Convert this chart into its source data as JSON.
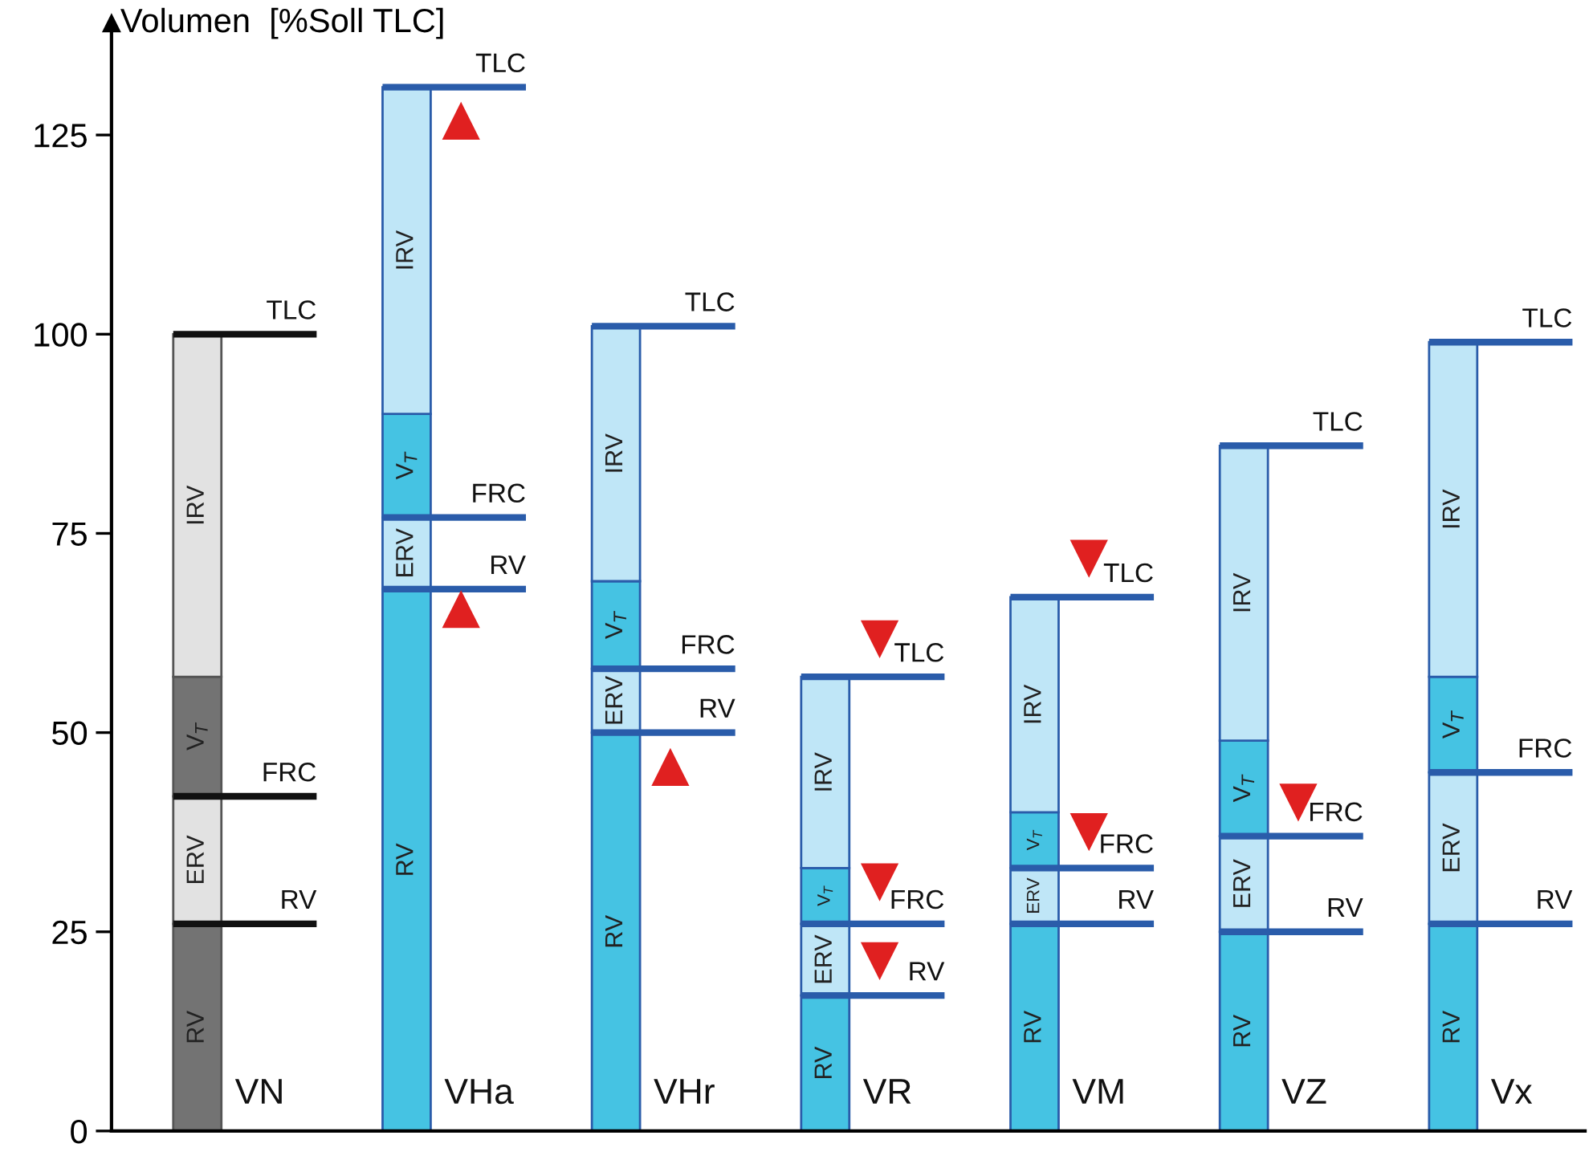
{
  "chart_data": {
    "type": "bar",
    "stacked": true,
    "ylabel": "Volumen  [%Soll TLC]",
    "categories": [
      "VN",
      "VHa",
      "VHr",
      "VR",
      "VM",
      "VZ",
      "Vx"
    ],
    "ylim": [
      0,
      139
    ],
    "yticks": [
      0,
      25,
      50,
      75,
      100,
      125
    ],
    "grid": false,
    "legend": false,
    "series": [
      {
        "name": "RV",
        "values": [
          26,
          68,
          50,
          17,
          26,
          25,
          26
        ],
        "value_labels": [
          "RV",
          "RV",
          "RV",
          "RV",
          "RV",
          "RV",
          "RV"
        ],
        "colors": [
          "#737373",
          "#45c3e3",
          "#45c3e3",
          "#45c3e3",
          "#45c3e3",
          "#45c3e3",
          "#45c3e3"
        ]
      },
      {
        "name": "ERV",
        "values": [
          16,
          9,
          8,
          9,
          7,
          12,
          19
        ],
        "value_labels": [
          "FRC",
          "FRC",
          "FRC",
          "FRC",
          "FRC",
          "FRC",
          "FRC"
        ],
        "colors": [
          "#e2e2e2",
          "#bfe6f7",
          "#bfe6f7",
          "#bfe6f7",
          "#bfe6f7",
          "#bfe6f7",
          "#bfe6f7"
        ]
      },
      {
        "name": "V$_{T}$",
        "values": [
          15,
          13,
          11,
          7,
          7,
          12,
          12
        ],
        "colors": [
          "#737373",
          "#45c3e3",
          "#45c3e3",
          "#45c3e3",
          "#45c3e3",
          "#45c3e3",
          "#45c3e3"
        ]
      },
      {
        "name": "IRV",
        "values": [
          43,
          41,
          32,
          24,
          27,
          37,
          42
        ],
        "value_labels": [
          "TLC",
          "TLC",
          "TLC",
          "TLC",
          "TLC",
          "TLC",
          "TLC"
        ],
        "colors": [
          "#e2e2e2",
          "#bfe6f7",
          "#bfe6f7",
          "#bfe6f7",
          "#bfe6f7",
          "#bfe6f7",
          "#bfe6f7"
        ]
      },
      {
        "type": "scatter",
        "marker": "triangle",
        "color": "#e02020",
        "x": [
          "VHa",
          "VHa",
          "VHr"
        ],
        "values": [
          126.8,
          65.5,
          45.7
        ]
      },
      {
        "type": "scatter",
        "marker": "triangle_down",
        "color": "#e02020",
        "x": [
          "VR",
          "VR",
          "VR",
          "VM",
          "VM",
          "VZ"
        ],
        "values": [
          61.7,
          31.2,
          21.3,
          71.8,
          37.5,
          41.2
        ]
      }
    ]
  }
}
